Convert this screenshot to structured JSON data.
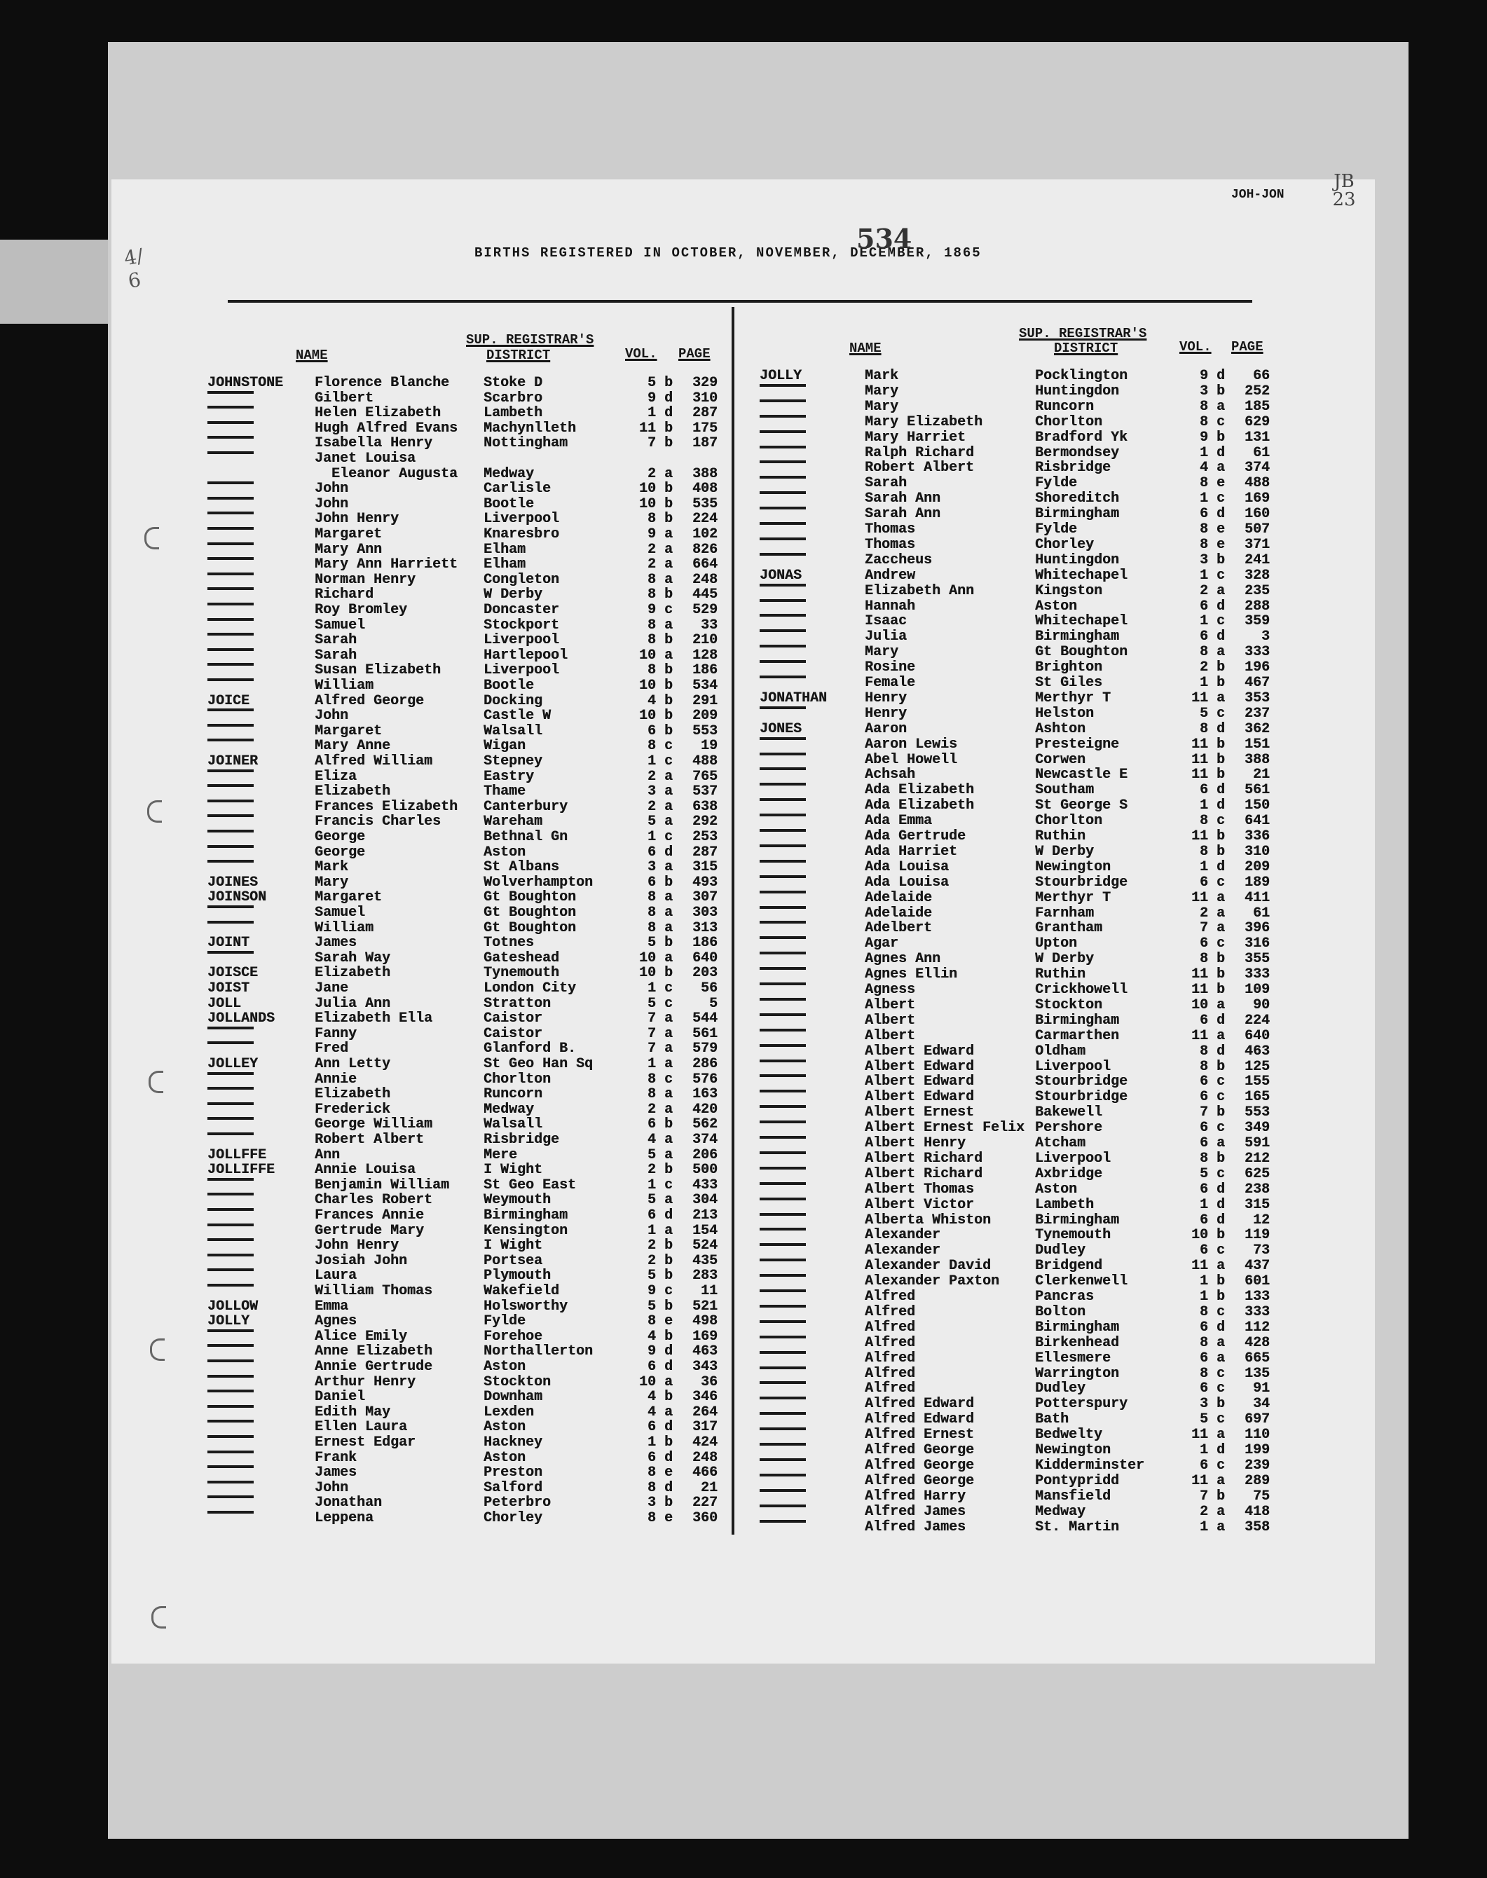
{
  "header": {
    "title": "BIRTHS REGISTERED IN OCTOBER, NOVEMBER, DECEMBER, 1865",
    "page_number_handwritten": "534",
    "index_range": "JOH-JON",
    "corner_note": "JB 23"
  },
  "columns": {
    "name": "NAME",
    "district_line1": "SUP. REGISTRAR'S",
    "district_line2": "DISTRICT",
    "vol": "VOL.",
    "page": "PAGE"
  },
  "left_entries": [
    [
      "JOHNSTONE",
      "Florence Blanche",
      "Stoke D",
      "5 b",
      "329"
    ],
    [
      "",
      "Gilbert",
      "Scarbro",
      "9 d",
      "310"
    ],
    [
      "",
      "Helen Elizabeth",
      "Lambeth",
      "1 d",
      "287"
    ],
    [
      "",
      "Hugh Alfred Evans",
      "Machynlleth",
      "11 b",
      "175"
    ],
    [
      "",
      "Isabella Henry",
      "Nottingham",
      "7 b",
      "187"
    ],
    [
      "",
      "Janet Louisa",
      "",
      "",
      ""
    ],
    [
      null,
      "  Eleanor Augusta",
      "Medway",
      "2 a",
      "388"
    ],
    [
      "",
      "John",
      "Carlisle",
      "10 b",
      "408"
    ],
    [
      "",
      "John",
      "Bootle",
      "10 b",
      "535"
    ],
    [
      "",
      "John Henry",
      "Liverpool",
      "8 b",
      "224"
    ],
    [
      "",
      "Margaret",
      "Knaresbro",
      "9 a",
      "102"
    ],
    [
      "",
      "Mary Ann",
      "Elham",
      "2 a",
      "826"
    ],
    [
      "",
      "Mary Ann Harriett",
      "Elham",
      "2 a",
      "664"
    ],
    [
      "",
      "Norman Henry",
      "Congleton",
      "8 a",
      "248"
    ],
    [
      "",
      "Richard",
      "W Derby",
      "8 b",
      "445"
    ],
    [
      "",
      "Roy Bromley",
      "Doncaster",
      "9 c",
      "529"
    ],
    [
      "",
      "Samuel",
      "Stockport",
      "8 a",
      "33"
    ],
    [
      "",
      "Sarah",
      "Liverpool",
      "8 b",
      "210"
    ],
    [
      "",
      "Sarah",
      "Hartlepool",
      "10 a",
      "128"
    ],
    [
      "",
      "Susan Elizabeth",
      "Liverpool",
      "8 b",
      "186"
    ],
    [
      "",
      "William",
      "Bootle",
      "10 b",
      "534"
    ],
    [
      "JOICE",
      "Alfred George",
      "Docking",
      "4 b",
      "291"
    ],
    [
      "",
      "John",
      "Castle W",
      "10 b",
      "209"
    ],
    [
      "",
      "Margaret",
      "Walsall",
      "6 b",
      "553"
    ],
    [
      "",
      "Mary Anne",
      "Wigan",
      "8 c",
      "19"
    ],
    [
      "JOINER",
      "Alfred William",
      "Stepney",
      "1 c",
      "488"
    ],
    [
      "",
      "Eliza",
      "Eastry",
      "2 a",
      "765"
    ],
    [
      "",
      "Elizabeth",
      "Thame",
      "3 a",
      "537"
    ],
    [
      "",
      "Frances Elizabeth",
      "Canterbury",
      "2 a",
      "638"
    ],
    [
      "",
      "Francis Charles",
      "Wareham",
      "5 a",
      "292"
    ],
    [
      "",
      "George",
      "Bethnal Gn",
      "1 c",
      "253"
    ],
    [
      "",
      "George",
      "Aston",
      "6 d",
      "287"
    ],
    [
      "",
      "Mark",
      "St Albans",
      "3 a",
      "315"
    ],
    [
      "JOINES",
      "Mary",
      "Wolverhampton",
      "6 b",
      "493"
    ],
    [
      "JOINSON",
      "Margaret",
      "Gt Boughton",
      "8 a",
      "307"
    ],
    [
      "",
      "Samuel",
      "Gt Boughton",
      "8 a",
      "303"
    ],
    [
      "",
      "William",
      "Gt Boughton",
      "8 a",
      "313"
    ],
    [
      "JOINT",
      "James",
      "Totnes",
      "5 b",
      "186"
    ],
    [
      "",
      "Sarah Way",
      "Gateshead",
      "10 a",
      "640"
    ],
    [
      "JOISCE",
      "Elizabeth",
      "Tynemouth",
      "10 b",
      "203"
    ],
    [
      "JOIST",
      "Jane",
      "London City",
      "1 c",
      "56"
    ],
    [
      "JOLL",
      "Julia Ann",
      "Stratton",
      "5 c",
      "5"
    ],
    [
      "JOLLANDS",
      "Elizabeth Ella",
      "Caistor",
      "7 a",
      "544"
    ],
    [
      "",
      "Fanny",
      "Caistor",
      "7 a",
      "561"
    ],
    [
      "",
      "Fred",
      "Glanford B.",
      "7 a",
      "579"
    ],
    [
      "JOLLEY",
      "Ann Letty",
      "St Geo Han Sq",
      "1 a",
      "286"
    ],
    [
      "",
      "Annie",
      "Chorlton",
      "8 c",
      "576"
    ],
    [
      "",
      "Elizabeth",
      "Runcorn",
      "8 a",
      "163"
    ],
    [
      "",
      "Frederick",
      "Medway",
      "2 a",
      "420"
    ],
    [
      "",
      "George William",
      "Walsall",
      "6 b",
      "562"
    ],
    [
      "",
      "Robert Albert",
      "Risbridge",
      "4 a",
      "374"
    ],
    [
      "JOLLFFE",
      "Ann",
      "Mere",
      "5 a",
      "206"
    ],
    [
      "JOLLIFFE",
      "Annie Louisa",
      "I Wight",
      "2 b",
      "500"
    ],
    [
      "",
      "Benjamin William",
      "St Geo East",
      "1 c",
      "433"
    ],
    [
      "",
      "Charles Robert",
      "Weymouth",
      "5 a",
      "304"
    ],
    [
      "",
      "Frances Annie",
      "Birmingham",
      "6 d",
      "213"
    ],
    [
      "",
      "Gertrude Mary",
      "Kensington",
      "1 a",
      "154"
    ],
    [
      "",
      "John Henry",
      "I Wight",
      "2 b",
      "524"
    ],
    [
      "",
      "Josiah John",
      "Portsea",
      "2 b",
      "435"
    ],
    [
      "",
      "Laura",
      "Plymouth",
      "5 b",
      "283"
    ],
    [
      "",
      "William Thomas",
      "Wakefield",
      "9 c",
      "11"
    ],
    [
      "JOLLOW",
      "Emma",
      "Holsworthy",
      "5 b",
      "521"
    ],
    [
      "JOLLY",
      "Agnes",
      "Fylde",
      "8 e",
      "498"
    ],
    [
      "",
      "Alice Emily",
      "Forehoe",
      "4 b",
      "169"
    ],
    [
      "",
      "Anne Elizabeth",
      "Northallerton",
      "9 d",
      "463"
    ],
    [
      "",
      "Annie Gertrude",
      "Aston",
      "6 d",
      "343"
    ],
    [
      "",
      "Arthur Henry",
      "Stockton",
      "10 a",
      "36"
    ],
    [
      "",
      "Daniel",
      "Downham",
      "4 b",
      "346"
    ],
    [
      "",
      "Edith May",
      "Lexden",
      "4 a",
      "264"
    ],
    [
      "",
      "Ellen Laura",
      "Aston",
      "6 d",
      "317"
    ],
    [
      "",
      "Ernest Edgar",
      "Hackney",
      "1 b",
      "424"
    ],
    [
      "",
      "Frank",
      "Aston",
      "6 d",
      "248"
    ],
    [
      "",
      "James",
      "Preston",
      "8 e",
      "466"
    ],
    [
      "",
      "John",
      "Salford",
      "8 d",
      "21"
    ],
    [
      "",
      "Jonathan",
      "Peterbro",
      "3 b",
      "227"
    ],
    [
      "",
      "Leppena",
      "Chorley",
      "8 e",
      "360"
    ]
  ],
  "right_entries": [
    [
      "JOLLY",
      "Mark",
      "Pocklington",
      "9 d",
      "66"
    ],
    [
      "",
      "Mary",
      "Huntingdon",
      "3 b",
      "252"
    ],
    [
      "",
      "Mary",
      "Runcorn",
      "8 a",
      "185"
    ],
    [
      "",
      "Mary Elizabeth",
      "Chorlton",
      "8 c",
      "629"
    ],
    [
      "",
      "Mary Harriet",
      "Bradford Yk",
      "9 b",
      "131"
    ],
    [
      "",
      "Ralph Richard",
      "Bermondsey",
      "1 d",
      "61"
    ],
    [
      "",
      "Robert Albert",
      "Risbridge",
      "4 a",
      "374"
    ],
    [
      "",
      "Sarah",
      "Fylde",
      "8 e",
      "488"
    ],
    [
      "",
      "Sarah Ann",
      "Shoreditch",
      "1 c",
      "169"
    ],
    [
      "",
      "Sarah Ann",
      "Birmingham",
      "6 d",
      "160"
    ],
    [
      "",
      "Thomas",
      "Fylde",
      "8 e",
      "507"
    ],
    [
      "",
      "Thomas",
      "Chorley",
      "8 e",
      "371"
    ],
    [
      "",
      "Zaccheus",
      "Huntingdon",
      "3 b",
      "241"
    ],
    [
      "JONAS",
      "Andrew",
      "Whitechapel",
      "1 c",
      "328"
    ],
    [
      "",
      "Elizabeth Ann",
      "Kingston",
      "2 a",
      "235"
    ],
    [
      "",
      "Hannah",
      "Aston",
      "6 d",
      "288"
    ],
    [
      "",
      "Isaac",
      "Whitechapel",
      "1 c",
      "359"
    ],
    [
      "",
      "Julia",
      "Birmingham",
      "6 d",
      "3"
    ],
    [
      "",
      "Mary",
      "Gt Boughton",
      "8 a",
      "333"
    ],
    [
      "",
      "Rosine",
      "Brighton",
      "2 b",
      "196"
    ],
    [
      "",
      "Female",
      "St Giles",
      "1 b",
      "467"
    ],
    [
      "JONATHAN",
      "Henry",
      "Merthyr T",
      "11 a",
      "353"
    ],
    [
      "",
      "Henry",
      "Helston",
      "5 c",
      "237"
    ],
    [
      "JONES",
      "Aaron",
      "Ashton",
      "8 d",
      "362"
    ],
    [
      "",
      "Aaron Lewis",
      "Presteigne",
      "11 b",
      "151"
    ],
    [
      "",
      "Abel Howell",
      "Corwen",
      "11 b",
      "388"
    ],
    [
      "",
      "Achsah",
      "Newcastle E",
      "11 b",
      "21"
    ],
    [
      "",
      "Ada Elizabeth",
      "Southam",
      "6 d",
      "561"
    ],
    [
      "",
      "Ada Elizabeth",
      "St George S",
      "1 d",
      "150"
    ],
    [
      "",
      "Ada Emma",
      "Chorlton",
      "8 c",
      "641"
    ],
    [
      "",
      "Ada Gertrude",
      "Ruthin",
      "11 b",
      "336"
    ],
    [
      "",
      "Ada Harriet",
      "W Derby",
      "8 b",
      "310"
    ],
    [
      "",
      "Ada Louisa",
      "Newington",
      "1 d",
      "209"
    ],
    [
      "",
      "Ada Louisa",
      "Stourbridge",
      "6 c",
      "189"
    ],
    [
      "",
      "Adelaide",
      "Merthyr T",
      "11 a",
      "411"
    ],
    [
      "",
      "Adelaide",
      "Farnham",
      "2 a",
      "61"
    ],
    [
      "",
      "Adelbert",
      "Grantham",
      "7 a",
      "396"
    ],
    [
      "",
      "Agar",
      "Upton",
      "6 c",
      "316"
    ],
    [
      "",
      "Agnes Ann",
      "W Derby",
      "8 b",
      "355"
    ],
    [
      "",
      "Agnes Ellin",
      "Ruthin",
      "11 b",
      "333"
    ],
    [
      "",
      "Agness",
      "Crickhowell",
      "11 b",
      "109"
    ],
    [
      "",
      "Albert",
      "Stockton",
      "10 a",
      "90"
    ],
    [
      "",
      "Albert",
      "Birmingham",
      "6 d",
      "224"
    ],
    [
      "",
      "Albert",
      "Carmarthen",
      "11 a",
      "640"
    ],
    [
      "",
      "Albert Edward",
      "Oldham",
      "8 d",
      "463"
    ],
    [
      "",
      "Albert Edward",
      "Liverpool",
      "8 b",
      "125"
    ],
    [
      "",
      "Albert Edward",
      "Stourbridge",
      "6 c",
      "155"
    ],
    [
      "",
      "Albert Edward",
      "Stourbridge",
      "6 c",
      "165"
    ],
    [
      "",
      "Albert Ernest",
      "Bakewell",
      "7 b",
      "553"
    ],
    [
      "",
      "Albert Ernest Felix",
      "Pershore",
      "6 c",
      "349"
    ],
    [
      "",
      "Albert Henry",
      "Atcham",
      "6 a",
      "591"
    ],
    [
      "",
      "Albert Richard",
      "Liverpool",
      "8 b",
      "212"
    ],
    [
      "",
      "Albert Richard",
      "Axbridge",
      "5 c",
      "625"
    ],
    [
      "",
      "Albert Thomas",
      "Aston",
      "6 d",
      "238"
    ],
    [
      "",
      "Albert Victor",
      "Lambeth",
      "1 d",
      "315"
    ],
    [
      "",
      "Alberta Whiston",
      "Birmingham",
      "6 d",
      "12"
    ],
    [
      "",
      "Alexander",
      "Tynemouth",
      "10 b",
      "119"
    ],
    [
      "",
      "Alexander",
      "Dudley",
      "6 c",
      "73"
    ],
    [
      "",
      "Alexander David",
      "Bridgend",
      "11 a",
      "437"
    ],
    [
      "",
      "Alexander Paxton",
      "Clerkenwell",
      "1 b",
      "601"
    ],
    [
      "",
      "Alfred",
      "Pancras",
      "1 b",
      "133"
    ],
    [
      "",
      "Alfred",
      "Bolton",
      "8 c",
      "333"
    ],
    [
      "",
      "Alfred",
      "Birmingham",
      "6 d",
      "112"
    ],
    [
      "",
      "Alfred",
      "Birkenhead",
      "8 a",
      "428"
    ],
    [
      "",
      "Alfred",
      "Ellesmere",
      "6 a",
      "665"
    ],
    [
      "",
      "Alfred",
      "Warrington",
      "8 c",
      "135"
    ],
    [
      "",
      "Alfred",
      "Dudley",
      "6 c",
      "91"
    ],
    [
      "",
      "Alfred Edward",
      "Potterspury",
      "3 b",
      "34"
    ],
    [
      "",
      "Alfred Edward",
      "Bath",
      "5 c",
      "697"
    ],
    [
      "",
      "Alfred Ernest",
      "Bedwelty",
      "11 a",
      "110"
    ],
    [
      "",
      "Alfred George",
      "Newington",
      "1 d",
      "199"
    ],
    [
      "",
      "Alfred George",
      "Kidderminster",
      "6 c",
      "239"
    ],
    [
      "",
      "Alfred George",
      "Pontypridd",
      "11 a",
      "289"
    ],
    [
      "",
      "Alfred Harry",
      "Mansfield",
      "7 b",
      "75"
    ],
    [
      "",
      "Alfred James",
      "Medway",
      "2 a",
      "418"
    ],
    [
      "",
      "Alfred James",
      "St. Martin",
      "1 a",
      "358"
    ]
  ]
}
